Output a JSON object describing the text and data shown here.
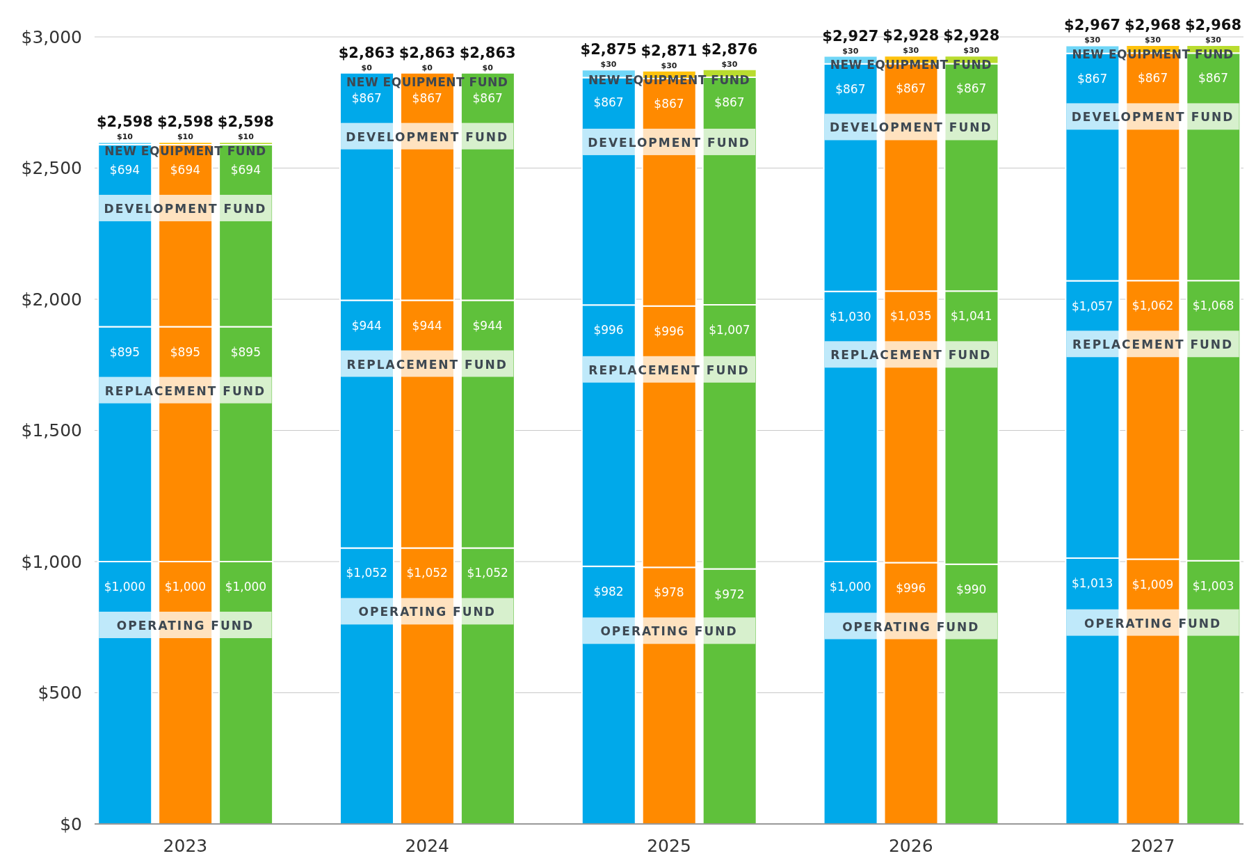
{
  "chart_data": {
    "type": "bar",
    "stacked": true,
    "grid": "y",
    "legend": false,
    "categories": [
      null,
      "2023",
      null,
      null,
      null,
      "2024",
      null,
      null,
      null,
      "2025",
      null,
      null,
      null,
      "2026",
      null,
      null,
      null,
      "2027",
      null
    ],
    "ylim": [
      0,
      3000
    ],
    "yticks": [
      {
        "value": 0,
        "label": "$0"
      },
      {
        "value": 500,
        "label": "$500"
      },
      {
        "value": 1000,
        "label": "$1,000"
      },
      {
        "value": 1500,
        "label": "$1,500"
      },
      {
        "value": 2000,
        "label": "$2,000"
      },
      {
        "value": 2500,
        "label": "$2,500"
      },
      {
        "value": 3000,
        "label": "$3,000"
      }
    ],
    "series": [
      {
        "name": "OPERATING FUND",
        "values": [
          1000,
          1000,
          1000,
          null,
          1052,
          1052,
          1052,
          null,
          982,
          978,
          972,
          null,
          1000,
          996,
          990,
          null,
          1013,
          1009,
          1003
        ],
        "colors": [
          "#00a9ea",
          "#ff8a00",
          "#5fc13b",
          null,
          "#00a9ea",
          "#ff8a00",
          "#5fc13b",
          null,
          "#00a9ea",
          "#ff8a00",
          "#5fc13b",
          null,
          "#00a9ea",
          "#ff8a00",
          "#5fc13b",
          null,
          "#00a9ea",
          "#ff8a00",
          "#5fc13b"
        ],
        "value_labels": [
          "$1,000",
          "$1,000",
          "$1,000",
          null,
          "$1,052",
          "$1,052",
          "$1,052",
          null,
          "$982",
          "$978",
          "$972",
          null,
          "$1,000",
          "$996",
          "$990",
          null,
          "$1,013",
          "$1,009",
          "$1,003"
        ]
      },
      {
        "name": "REPLACEMENT FUND",
        "values": [
          895,
          895,
          895,
          null,
          944,
          944,
          944,
          null,
          996,
          996,
          1007,
          null,
          1030,
          1035,
          1041,
          null,
          1057,
          1062,
          1068
        ],
        "colors": [
          "#00a9ea",
          "#ff8a00",
          "#5fc13b",
          null,
          "#00a9ea",
          "#ff8a00",
          "#5fc13b",
          null,
          "#00a9ea",
          "#ff8a00",
          "#5fc13b",
          null,
          "#00a9ea",
          "#ff8a00",
          "#5fc13b",
          null,
          "#00a9ea",
          "#ff8a00",
          "#5fc13b"
        ],
        "value_labels": [
          "$895",
          "$895",
          "$895",
          null,
          "$944",
          "$944",
          "$944",
          null,
          "$996",
          "$996",
          "$1,007",
          null,
          "$1,030",
          "$1,035",
          "$1,041",
          null,
          "$1,057",
          "$1,062",
          "$1,068"
        ]
      },
      {
        "name": "DEVELOPMENT FUND",
        "values": [
          694,
          694,
          694,
          null,
          867,
          867,
          867,
          null,
          867,
          867,
          867,
          null,
          867,
          867,
          867,
          null,
          867,
          867,
          867
        ],
        "colors": [
          "#00a9ea",
          "#ff8a00",
          "#5fc13b",
          null,
          "#00a9ea",
          "#ff8a00",
          "#5fc13b",
          null,
          "#00a9ea",
          "#ff8a00",
          "#5fc13b",
          null,
          "#00a9ea",
          "#ff8a00",
          "#5fc13b",
          null,
          "#00a9ea",
          "#ff8a00",
          "#5fc13b"
        ],
        "value_labels": [
          "$694",
          "$694",
          "$694",
          null,
          "$867",
          "$867",
          "$867",
          null,
          "$867",
          "$867",
          "$867",
          null,
          "$867",
          "$867",
          "$867",
          null,
          "$867",
          "$867",
          "$867"
        ]
      },
      {
        "name": "NEW EQUIPMENT FUND",
        "values": [
          10,
          10,
          10,
          null,
          0,
          0,
          0,
          null,
          30,
          30,
          30,
          null,
          30,
          30,
          30,
          null,
          30,
          30,
          30
        ],
        "colors": [
          "#6fd6f7",
          "#ffc20e",
          "#b9dc2f",
          null,
          "#6fd6f7",
          "#ffc20e",
          "#b9dc2f",
          null,
          "#6fd6f7",
          "#ffc20e",
          "#b9dc2f",
          null,
          "#6fd6f7",
          "#ffc20e",
          "#b9dc2f",
          null,
          "#6fd6f7",
          "#ffc20e",
          "#b9dc2f"
        ],
        "value_labels": [
          "$10",
          "$10",
          "$10",
          null,
          "$0",
          "$0",
          "$0",
          null,
          "$30",
          "$30",
          "$30",
          null,
          "$30",
          "$30",
          "$30",
          null,
          "$30",
          "$30",
          "$30"
        ]
      }
    ],
    "totals": [
      "$2,598",
      "$2,598",
      "$2,598",
      null,
      "$2,863",
      "$2,863",
      "$2,863",
      null,
      "$2,875",
      "$2,871",
      "$2,876",
      null,
      "$2,927",
      "$2,928",
      "$2,928",
      null,
      "$2,967",
      "$2,968",
      "$2,968"
    ]
  }
}
